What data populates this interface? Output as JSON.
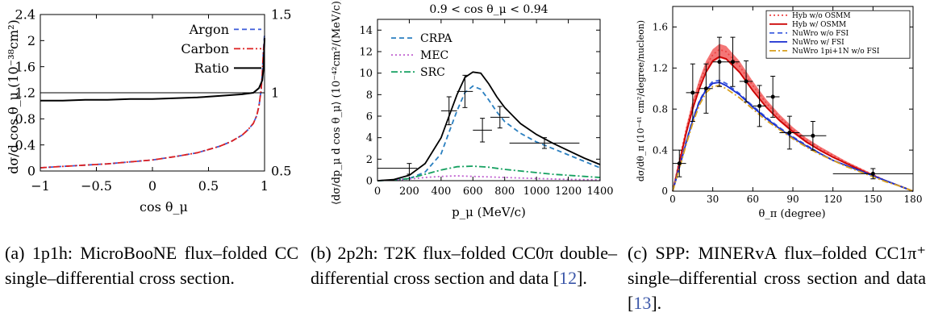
{
  "chart_data": [
    {
      "type": "line",
      "panel": "a",
      "xlabel": "cos θ_μ",
      "ylabel": "dσ/d cos θ_μ (10⁻³⁸cm²)",
      "xlim": [
        -1,
        1
      ],
      "ylim": [
        0,
        2.4
      ],
      "y2lim": [
        0.5,
        1.5
      ],
      "xticks": [
        "−1",
        "−0.5",
        "0",
        "0.5",
        "1"
      ],
      "yticks": [
        "0",
        "0.4",
        "0.8",
        "1.2",
        "1.6",
        "2",
        "2.4"
      ],
      "y2ticks": [
        "0.5",
        "1",
        "1.5"
      ],
      "legend_position": "top-right",
      "series": [
        {
          "name": "Argon",
          "axis": "left",
          "color": "#3b5bd9",
          "dash": "dashed",
          "x": [
            -1,
            -0.8,
            -0.6,
            -0.4,
            -0.2,
            0,
            0.2,
            0.4,
            0.6,
            0.7,
            0.8,
            0.85,
            0.9,
            0.93,
            0.95,
            0.97,
            0.98,
            0.99,
            1.0
          ],
          "y": [
            0.05,
            0.07,
            0.09,
            0.11,
            0.14,
            0.17,
            0.22,
            0.28,
            0.38,
            0.45,
            0.55,
            0.63,
            0.73,
            0.85,
            1.0,
            1.25,
            1.5,
            1.85,
            2.1
          ]
        },
        {
          "name": "Carbon",
          "axis": "left",
          "color": "#dd2020",
          "dash": "dashdot",
          "x": [
            -1,
            -0.8,
            -0.6,
            -0.4,
            -0.2,
            0,
            0.2,
            0.4,
            0.6,
            0.7,
            0.8,
            0.85,
            0.9,
            0.93,
            0.95,
            0.97,
            0.98,
            0.99,
            1.0
          ],
          "y": [
            0.05,
            0.07,
            0.09,
            0.11,
            0.14,
            0.17,
            0.22,
            0.28,
            0.38,
            0.45,
            0.55,
            0.63,
            0.73,
            0.85,
            1.0,
            1.25,
            1.5,
            1.85,
            2.0
          ]
        },
        {
          "name": "Ratio",
          "axis": "right",
          "color": "#000000",
          "dash": "solid",
          "x": [
            -1,
            -0.8,
            -0.6,
            -0.4,
            -0.2,
            0,
            0.2,
            0.4,
            0.6,
            0.8,
            0.9,
            0.95,
            0.98,
            0.99,
            1.0
          ],
          "y": [
            0.95,
            0.95,
            0.955,
            0.955,
            0.96,
            0.96,
            0.965,
            0.97,
            0.98,
            0.99,
            1.0,
            1.03,
            1.08,
            1.15,
            1.35
          ]
        }
      ],
      "reference_line": {
        "axis": "right",
        "y": 1.0
      }
    },
    {
      "type": "line",
      "panel": "b",
      "title": "0.9 < cos θ_μ < 0.94",
      "xlabel": "p_μ (MeV/c)",
      "ylabel": "⟨dσ/dp_μ d cos θ_μ⟩ (10⁻⁴²cm²/(MeV/c))",
      "xlim": [
        0,
        1400
      ],
      "ylim": [
        0,
        15
      ],
      "xticks": [
        "0",
        "200",
        "400",
        "600",
        "800",
        "1000",
        "1200",
        "1400"
      ],
      "yticks": [
        "0",
        "2",
        "4",
        "6",
        "8",
        "10",
        "12",
        "14"
      ],
      "legend_position": "top-left",
      "series": [
        {
          "name": "CRPA",
          "color": "#2a7fc0",
          "dash": "dashed",
          "x": [
            0,
            100,
            200,
            300,
            400,
            450,
            500,
            550,
            600,
            650,
            700,
            750,
            800,
            900,
            1000,
            1100,
            1200,
            1300,
            1400
          ],
          "y": [
            0,
            0.05,
            0.2,
            0.8,
            2.5,
            4.5,
            6.5,
            8.2,
            8.8,
            8.5,
            7.5,
            6.4,
            5.5,
            4.4,
            3.6,
            3.0,
            2.4,
            1.8,
            1.2
          ]
        },
        {
          "name": "MEC",
          "color": "#c060d0",
          "dash": "dotted",
          "x": [
            0,
            100,
            200,
            300,
            400,
            500,
            600,
            700,
            800,
            900,
            1000,
            1200,
            1400
          ],
          "y": [
            0,
            0.05,
            0.15,
            0.3,
            0.4,
            0.45,
            0.4,
            0.35,
            0.3,
            0.25,
            0.2,
            0.12,
            0.08
          ]
        },
        {
          "name": "SRC",
          "color": "#15a060",
          "dash": "dashdot",
          "x": [
            0,
            100,
            200,
            300,
            400,
            500,
            600,
            700,
            800,
            900,
            1000,
            1100,
            1200,
            1300,
            1400
          ],
          "y": [
            0,
            0.05,
            0.2,
            0.6,
            1.0,
            1.3,
            1.35,
            1.25,
            1.05,
            0.9,
            0.75,
            0.6,
            0.5,
            0.4,
            0.3
          ]
        },
        {
          "name": "",
          "color": "#000000",
          "dash": "solid",
          "x": [
            0,
            100,
            200,
            300,
            400,
            450,
            500,
            550,
            600,
            650,
            700,
            750,
            800,
            900,
            1000,
            1100,
            1200,
            1300,
            1400
          ],
          "y": [
            0,
            0.1,
            0.5,
            1.6,
            4.0,
            6.0,
            8.0,
            9.6,
            10.1,
            10.0,
            9.0,
            7.8,
            6.8,
            5.3,
            4.3,
            3.5,
            2.8,
            2.1,
            1.5
          ]
        }
      ],
      "data_points": [
        {
          "x": 125,
          "xerr": 125,
          "y": 1.15,
          "yerr": 0
        },
        {
          "x": 200,
          "xerr": 0,
          "y": 1.1,
          "yerr": 0.5
        },
        {
          "x": 450,
          "xerr": 50,
          "y": 6.5,
          "yerr": 1.3
        },
        {
          "x": 550,
          "xerr": 50,
          "y": 8.3,
          "yerr": 1.5
        },
        {
          "x": 660,
          "xerr": 60,
          "y": 4.7,
          "yerr": 1.1
        },
        {
          "x": 770,
          "xerr": 60,
          "y": 5.9,
          "yerr": 1.0
        },
        {
          "x": 1050,
          "xerr": 220,
          "y": 3.5,
          "yerr": 0.5
        }
      ]
    },
    {
      "type": "line",
      "panel": "c",
      "xlabel": "θ_π (degree)",
      "ylabel": "dσ/dθ_π (10⁻⁴¹ cm²/degree/nucleon)",
      "xlim": [
        0,
        180
      ],
      "ylim": [
        0,
        1.8
      ],
      "xticks": [
        "0",
        "30",
        "60",
        "90",
        "120",
        "150",
        "180"
      ],
      "yticks": [
        "0",
        "0.4",
        "0.8",
        "1.2",
        "1.6"
      ],
      "legend_position": "top-right",
      "series": [
        {
          "name": "Hyb w/o OSMM",
          "color": "#ee4444",
          "dash": "dotted",
          "x": [
            0,
            5,
            10,
            15,
            20,
            25,
            30,
            35,
            40,
            50,
            60,
            70,
            80,
            90,
            100,
            110,
            120,
            130,
            140,
            150,
            160,
            170,
            180
          ],
          "y": [
            0,
            0.3,
            0.6,
            0.85,
            1.05,
            1.22,
            1.33,
            1.38,
            1.36,
            1.22,
            1.03,
            0.86,
            0.72,
            0.6,
            0.5,
            0.42,
            0.35,
            0.28,
            0.22,
            0.16,
            0.1,
            0.05,
            0.0
          ]
        },
        {
          "name": "Hyb w/ OSMM",
          "color": "#cc0000",
          "dash": "solid",
          "x": [
            0,
            5,
            10,
            15,
            20,
            25,
            30,
            35,
            40,
            50,
            60,
            70,
            80,
            90,
            100,
            110,
            120,
            130,
            140,
            150,
            160,
            170,
            180
          ],
          "y": [
            0,
            0.28,
            0.56,
            0.8,
            1.0,
            1.16,
            1.27,
            1.31,
            1.29,
            1.16,
            0.98,
            0.82,
            0.69,
            0.58,
            0.48,
            0.4,
            0.33,
            0.27,
            0.21,
            0.15,
            0.1,
            0.05,
            0.0
          ]
        },
        {
          "name": "NuWro w/o FSI",
          "color": "#4060e0",
          "dash": "dashed",
          "x": [
            0,
            5,
            10,
            15,
            20,
            25,
            30,
            35,
            40,
            50,
            60,
            70,
            80,
            90,
            100,
            110,
            120,
            130,
            140,
            150,
            160,
            170,
            180
          ],
          "y": [
            0,
            0.24,
            0.48,
            0.7,
            0.88,
            1.0,
            1.07,
            1.08,
            1.05,
            0.95,
            0.83,
            0.72,
            0.62,
            0.53,
            0.45,
            0.37,
            0.3,
            0.25,
            0.2,
            0.15,
            0.1,
            0.05,
            0.0
          ]
        },
        {
          "name": "NuWro w/ FSI",
          "color": "#1a2fd0",
          "dash": "solid",
          "x": [
            0,
            5,
            10,
            15,
            20,
            25,
            30,
            35,
            40,
            50,
            60,
            70,
            80,
            90,
            100,
            110,
            120,
            130,
            140,
            150,
            160,
            170,
            180
          ],
          "y": [
            0,
            0.23,
            0.47,
            0.69,
            0.87,
            0.99,
            1.05,
            1.06,
            1.03,
            0.94,
            0.82,
            0.71,
            0.61,
            0.52,
            0.44,
            0.37,
            0.3,
            0.25,
            0.2,
            0.15,
            0.1,
            0.05,
            0.0
          ]
        },
        {
          "name": "NuWro 1pi+1N w/o FSI",
          "color": "#d8a020",
          "dash": "dashdot",
          "x": [
            0,
            5,
            10,
            15,
            20,
            25,
            30,
            35,
            40,
            50,
            60,
            70,
            80,
            90,
            100,
            110,
            120,
            130,
            140,
            150,
            160,
            170,
            180
          ],
          "y": [
            0,
            0.22,
            0.45,
            0.66,
            0.84,
            0.96,
            1.02,
            1.03,
            1.0,
            0.91,
            0.8,
            0.69,
            0.6,
            0.51,
            0.43,
            0.36,
            0.3,
            0.24,
            0.19,
            0.14,
            0.09,
            0.05,
            0.0
          ]
        }
      ],
      "band": {
        "series": "Hyb w/o OSMM",
        "color": "#f04848"
      },
      "data_points": [
        {
          "x": 5,
          "xerr": 5,
          "y": 0.27,
          "yerr": 0.13
        },
        {
          "x": 15,
          "xerr": 5,
          "y": 0.96,
          "yerr": 0.28
        },
        {
          "x": 25,
          "xerr": 5,
          "y": 1.0,
          "yerr": 0.24
        },
        {
          "x": 35,
          "xerr": 5,
          "y": 1.26,
          "yerr": 0.24
        },
        {
          "x": 45,
          "xerr": 5,
          "y": 1.26,
          "yerr": 0.24
        },
        {
          "x": 55,
          "xerr": 5,
          "y": 1.07,
          "yerr": 0.2
        },
        {
          "x": 65,
          "xerr": 5,
          "y": 0.83,
          "yerr": 0.2
        },
        {
          "x": 75,
          "xerr": 5,
          "y": 0.92,
          "yerr": 0.2
        },
        {
          "x": 87.5,
          "xerr": 7.5,
          "y": 0.57,
          "yerr": 0.16
        },
        {
          "x": 105,
          "xerr": 10,
          "y": 0.54,
          "yerr": 0.14
        },
        {
          "x": 150,
          "xerr": 30,
          "y": 0.17,
          "yerr": 0.05
        }
      ]
    }
  ],
  "captions": [
    {
      "pre": "(a) 1p1h: MicroBooNE flux–folded CC single–differential cross section.",
      "ref": "",
      "post": ""
    },
    {
      "pre": "(b) 2p2h: T2K flux–folded CC0π double–differential cross section and data [",
      "ref": "12",
      "post": "]."
    },
    {
      "pre": "(c) SPP: MINERvA flux–folded CC1π⁺ single–differential cross section and data [",
      "ref": "13",
      "post": "]."
    }
  ]
}
